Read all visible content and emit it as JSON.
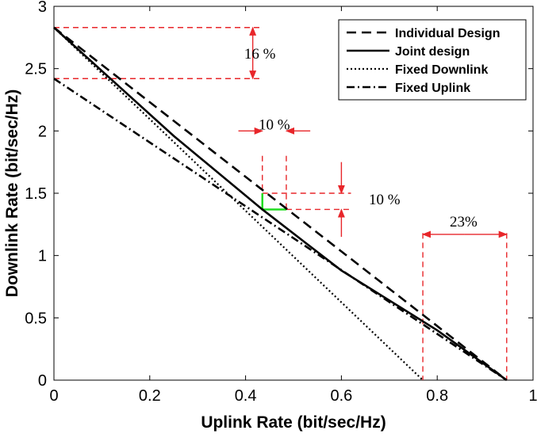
{
  "chart_data": {
    "type": "line",
    "title": "",
    "xlabel": "Uplink Rate (bit/sec/Hz)",
    "ylabel": "Downlink Rate (bit/sec/Hz)",
    "xlim": [
      0,
      1
    ],
    "ylim": [
      0,
      3
    ],
    "x_ticks": [
      "0",
      "0.2",
      "0.4",
      "0.6",
      "0.8",
      "1"
    ],
    "y_ticks": [
      "0",
      "0.5",
      "1",
      "1.5",
      "2",
      "2.5",
      "3"
    ],
    "grid": false,
    "legend_position": "top-right",
    "series": [
      {
        "name": "Individual Design",
        "style": "dashed",
        "color": "#000000",
        "points": [
          [
            0,
            2.83
          ],
          [
            0.945,
            0
          ]
        ]
      },
      {
        "name": "Joint design",
        "style": "solid",
        "color": "#000000",
        "points": [
          [
            0,
            2.83
          ],
          [
            0.25,
            1.96
          ],
          [
            0.435,
            1.37
          ],
          [
            0.6,
            0.88
          ],
          [
            0.8,
            0.4
          ],
          [
            0.945,
            0
          ]
        ]
      },
      {
        "name": "Fixed Downlink",
        "style": "dotted",
        "color": "#000000",
        "points": [
          [
            0,
            2.83
          ],
          [
            0.77,
            0
          ]
        ]
      },
      {
        "name": "Fixed Uplink",
        "style": "dashdot",
        "color": "#000000",
        "points": [
          [
            0,
            2.42
          ],
          [
            0.945,
            0
          ]
        ]
      }
    ],
    "annotations": [
      {
        "text": "16 %",
        "anchor": [
          0.43,
          2.62
        ]
      },
      {
        "text": "10 %",
        "anchor": [
          0.46,
          2.05
        ]
      },
      {
        "text": "10 %",
        "anchor": [
          0.69,
          1.45
        ]
      },
      {
        "text": "23%",
        "anchor": [
          0.855,
          1.27
        ]
      }
    ],
    "guide_color": "#e8262a",
    "highlight_color": "#22dd22"
  }
}
